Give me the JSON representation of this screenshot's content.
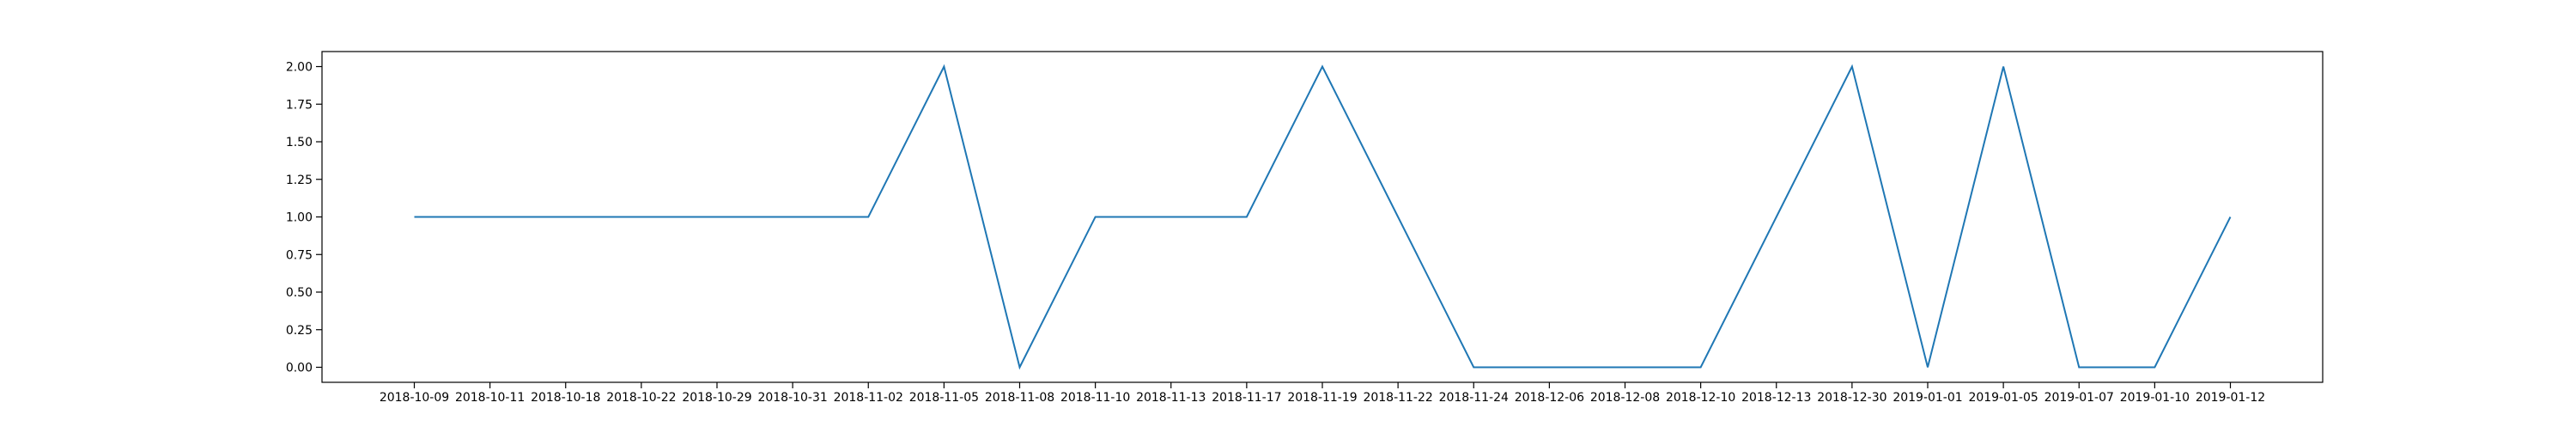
{
  "chart_data": {
    "type": "line",
    "title": "",
    "xlabel": "",
    "ylabel": "",
    "x": [
      "2018-10-09",
      "2018-10-11",
      "2018-10-18",
      "2018-10-22",
      "2018-10-29",
      "2018-10-31",
      "2018-11-02",
      "2018-11-05",
      "2018-11-08",
      "2018-11-10",
      "2018-11-13",
      "2018-11-17",
      "2018-11-19",
      "2018-11-22",
      "2018-11-24",
      "2018-12-06",
      "2018-12-08",
      "2018-12-10",
      "2018-12-13",
      "2018-12-30",
      "2019-01-01",
      "2019-01-05",
      "2019-01-07",
      "2019-01-10",
      "2019-01-12"
    ],
    "series": [
      {
        "values": [
          1,
          1,
          1,
          1,
          1,
          1,
          1,
          2,
          0,
          1,
          1,
          1,
          2,
          1,
          0,
          0,
          0,
          0,
          1,
          2,
          0,
          2,
          0,
          0,
          1
        ]
      }
    ],
    "ylim": [
      -0.1,
      2.1
    ],
    "yticks": [
      0.0,
      0.25,
      0.5,
      0.75,
      1.0,
      1.25,
      1.5,
      1.75,
      2.0
    ],
    "ytick_labels": [
      "0.00",
      "0.25",
      "0.50",
      "0.75",
      "1.00",
      "1.25",
      "1.50",
      "1.75",
      "2.00"
    ],
    "grid": false,
    "legend": "none",
    "line_color": "#1f77b4",
    "axis_color": "#000000"
  }
}
